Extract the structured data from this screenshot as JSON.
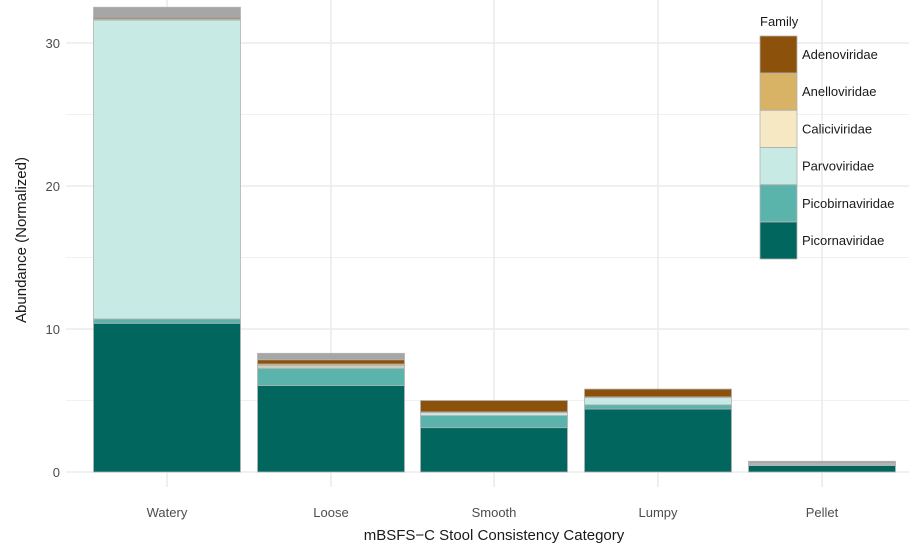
{
  "chart_data": {
    "type": "bar",
    "stacked": true,
    "xlabel": "mBSFS−C Stool Consistency Category",
    "ylabel": "Abundance (Normalized)",
    "ylim": [
      0,
      32.5
    ],
    "yticks": [
      0,
      10,
      20,
      30
    ],
    "grid": true,
    "legend_position": "top-right",
    "legend_title": "Family",
    "categories": [
      "Watery",
      "Loose",
      "Smooth",
      "Lumpy",
      "Pellet"
    ],
    "series": [
      {
        "name": "Picornaviridae",
        "color": "#01665e",
        "values": [
          10.4,
          6.05,
          3.1,
          4.4,
          0.45
        ]
      },
      {
        "name": "Picobirnaviridae",
        "color": "#5ab4ac",
        "values": [
          0.3,
          1.2,
          0.85,
          0.3,
          0.05
        ]
      },
      {
        "name": "Parvoviridae",
        "color": "#c7eae5",
        "values": [
          20.9,
          0.1,
          0.2,
          0.5,
          0.03
        ]
      },
      {
        "name": "Caliciviridae",
        "color": "#f6e8c3",
        "values": [
          0.05,
          0.1,
          0.0,
          0.0,
          0.0
        ]
      },
      {
        "name": "Anelloviridae",
        "color": "#d8b365",
        "values": [
          0.05,
          0.1,
          0.05,
          0.05,
          0.02
        ]
      },
      {
        "name": "Adenoviridae",
        "color": "#8c510a",
        "values": [
          0.1,
          0.3,
          0.8,
          0.55,
          0.05
        ]
      },
      {
        "values": [
          0.7,
          0.45,
          0.0,
          0.0,
          0.15
        ],
        "color": "#a6a6a6"
      }
    ]
  }
}
